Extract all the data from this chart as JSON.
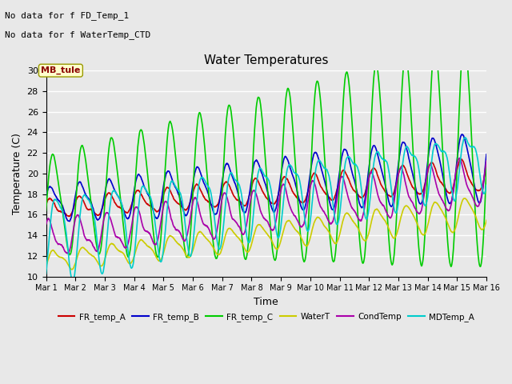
{
  "title": "Water Temperatures",
  "xlabel": "Time",
  "ylabel": "Temperature (C)",
  "ylim": [
    10,
    30
  ],
  "xlim": [
    0,
    15
  ],
  "background_color": "#e0e0e0",
  "plot_bg_color": "#e8e8e8",
  "grid_color": "#ffffff",
  "annotations": [
    "No data for f FD_Temp_1",
    "No data for f WaterTemp_CTD"
  ],
  "mb_tule_label": "MB_tule",
  "xtick_labels": [
    "Mar 1",
    "Mar 2",
    "Mar 3",
    "Mar 4",
    "Mar 5",
    "Mar 6",
    "Mar 7",
    "Mar 8",
    "Mar 9",
    "Mar 10",
    "Mar 11",
    "Mar 12",
    "Mar 13",
    "Mar 14",
    "Mar 15",
    "Mar 16"
  ],
  "series": {
    "FR_temp_A": {
      "color": "#cc0000",
      "lw": 1.2
    },
    "FR_temp_B": {
      "color": "#0000cc",
      "lw": 1.2
    },
    "FR_temp_C": {
      "color": "#00cc00",
      "lw": 1.2
    },
    "WaterT": {
      "color": "#cccc00",
      "lw": 1.2
    },
    "CondTemp": {
      "color": "#aa00aa",
      "lw": 1.2
    },
    "MDTemp_A": {
      "color": "#00cccc",
      "lw": 1.2
    }
  }
}
